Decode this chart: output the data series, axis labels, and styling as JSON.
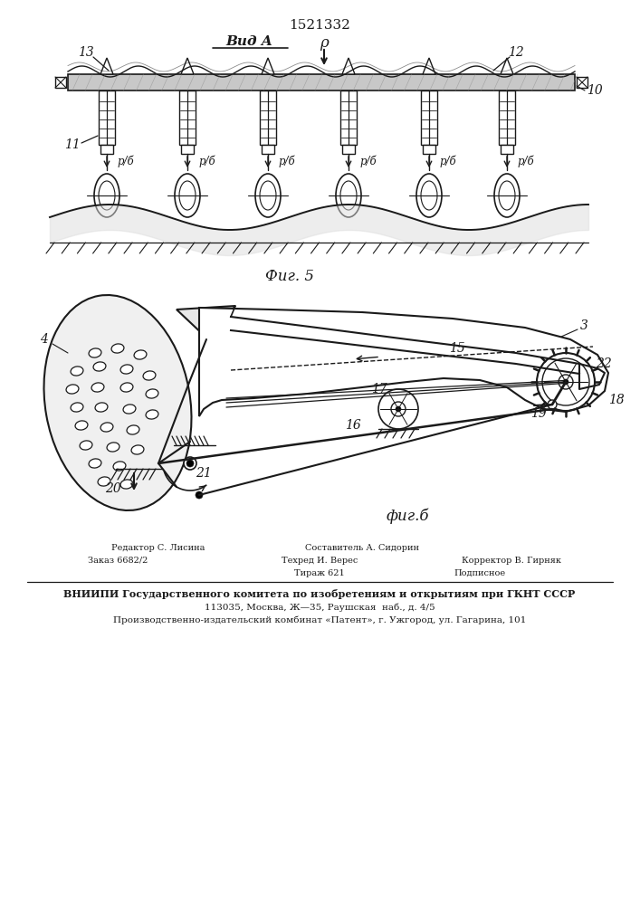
{
  "patent_number": "1521332",
  "fig5_label": "Фиг. 5",
  "fig6_label": "фиг.б",
  "vid_A_label": "Вид A",
  "P_label": "ρ",
  "label_13": "13",
  "label_12": "12",
  "label_11": "11",
  "label_10": "10",
  "label_rb": "р/б",
  "label_3": "3",
  "label_4": "4",
  "label_15": "15",
  "label_16": "16",
  "label_17": "17",
  "label_18": "18",
  "label_19": "19",
  "label_20": "20",
  "label_21": "21",
  "label_22": "22",
  "footer_left1": "Редактор С. Лисина",
  "footer_mid1": "Составитель А. Сидорин",
  "footer_left2": "Заказ 6682/2",
  "footer_mid2": "Техред И. Верес",
  "footer_right2": "Корректор В. Гирняк",
  "footer_mid3": "Тираж 621",
  "footer_right3": "Подписное",
  "footer_vniipи": "ВНИИПИ Государственного комитета по изобретениям и открытиям при ГКНТ СССР",
  "footer_addr1": "113035, Москва, Ж—35, Раушская  наб., д. 4/5",
  "footer_addr2": "Производственно-издательский комбинат «Патент», г. Ужгород, ул. Гагарина, 101",
  "bg_color": "#ffffff",
  "line_color": "#1a1a1a"
}
